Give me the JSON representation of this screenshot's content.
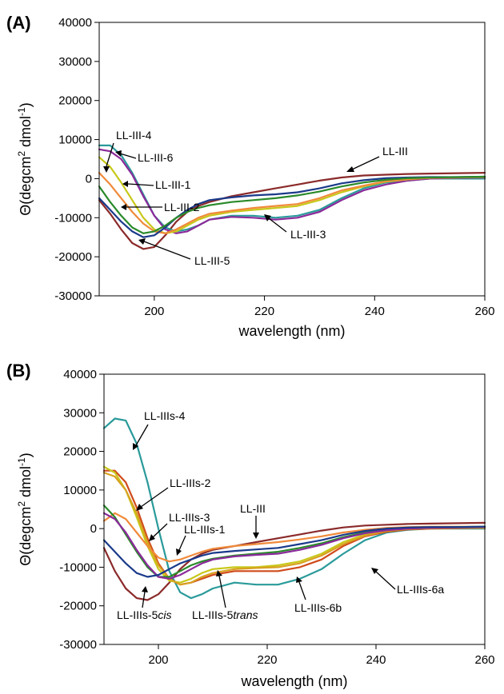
{
  "chart_data": [
    {
      "type": "line",
      "panel_label": "(A)",
      "xlabel": "wavelength (nm)",
      "ylabel_parts": [
        "Θ(degcm",
        "2",
        " dmol",
        "-1",
        ")"
      ],
      "xlim": [
        190,
        260
      ],
      "ylim": [
        -30000,
        40000
      ],
      "xticks": [
        200,
        220,
        240,
        260
      ],
      "yticks": [
        40000,
        30000,
        20000,
        10000,
        0,
        -10000,
        -20000,
        -30000
      ],
      "grid": false,
      "series": [
        {
          "name": "LL-III",
          "color": "#8b2a2a",
          "x": [
            190,
            192,
            194,
            196,
            198,
            200,
            202,
            204,
            206,
            208,
            210,
            214,
            218,
            222,
            226,
            230,
            234,
            238,
            242,
            246,
            250,
            255,
            260
          ],
          "y": [
            -5500,
            -9000,
            -13000,
            -16500,
            -18000,
            -17500,
            -14500,
            -11000,
            -8500,
            -7000,
            -6000,
            -4500,
            -3500,
            -2500,
            -1500,
            -500,
            300,
            800,
            1000,
            1200,
            1300,
            1400,
            1500
          ]
        },
        {
          "name": "LL-III-4",
          "color": "#2a9a9a",
          "x": [
            190,
            192,
            194,
            196,
            198,
            200,
            202,
            204,
            206,
            208,
            210,
            214,
            218,
            222,
            226,
            230,
            234,
            238,
            242,
            246,
            250,
            255,
            260
          ],
          "y": [
            8500,
            8500,
            6000,
            1500,
            -4000,
            -9500,
            -12500,
            -13500,
            -13000,
            -12000,
            -10500,
            -9500,
            -9500,
            -10000,
            -9500,
            -8000,
            -5000,
            -2500,
            -1000,
            -500,
            0,
            0,
            0
          ]
        },
        {
          "name": "LL-III-6",
          "color": "#8b2a9a",
          "x": [
            190,
            192,
            194,
            196,
            198,
            200,
            202,
            204,
            206,
            208,
            210,
            214,
            218,
            222,
            226,
            230,
            234,
            238,
            242,
            246,
            250,
            255,
            260
          ],
          "y": [
            7500,
            7000,
            5000,
            1000,
            -4500,
            -9500,
            -13000,
            -14000,
            -13500,
            -12000,
            -10500,
            -9800,
            -10000,
            -10500,
            -10000,
            -8500,
            -5500,
            -3000,
            -1500,
            -500,
            0,
            200,
            300
          ]
        },
        {
          "name": "LL-III-1",
          "color": "#c8c81a",
          "x": [
            190,
            192,
            194,
            196,
            198,
            200,
            202,
            204,
            206,
            208,
            210,
            214,
            218,
            222,
            226,
            230,
            234,
            238,
            242,
            246,
            250,
            255,
            260
          ],
          "y": [
            5500,
            3000,
            -1000,
            -5500,
            -10000,
            -13000,
            -14000,
            -13500,
            -12000,
            -10500,
            -9500,
            -8500,
            -8000,
            -7500,
            -7000,
            -5500,
            -3500,
            -2000,
            -800,
            -200,
            200,
            300,
            400
          ]
        },
        {
          "name": "LL-III-2",
          "color": "#f08a3a",
          "x": [
            190,
            192,
            194,
            196,
            198,
            200,
            202,
            204,
            206,
            208,
            210,
            214,
            218,
            222,
            226,
            230,
            234,
            238,
            242,
            246,
            250,
            255,
            260
          ],
          "y": [
            1500,
            -1500,
            -5000,
            -8500,
            -11500,
            -13500,
            -14000,
            -13000,
            -11500,
            -10000,
            -9000,
            -8200,
            -7500,
            -7000,
            -6500,
            -5000,
            -3000,
            -1800,
            -700,
            -100,
            200,
            300,
            400
          ]
        },
        {
          "name": "LL-III-5",
          "color": "#1a3a8a",
          "x": [
            190,
            192,
            194,
            196,
            198,
            200,
            202,
            204,
            206,
            208,
            210,
            214,
            218,
            222,
            226,
            230,
            234,
            238,
            242,
            246,
            250,
            255,
            260
          ],
          "y": [
            -5000,
            -8000,
            -11000,
            -13500,
            -15000,
            -14500,
            -12500,
            -10000,
            -8000,
            -6500,
            -5500,
            -4800,
            -4300,
            -4000,
            -3500,
            -2500,
            -1200,
            -400,
            100,
            300,
            400,
            400,
            500
          ]
        },
        {
          "name": "LL-III-3",
          "color": "#2a8a2a",
          "x": [
            190,
            192,
            194,
            196,
            198,
            200,
            202,
            204,
            206,
            208,
            210,
            214,
            218,
            222,
            226,
            230,
            234,
            238,
            242,
            246,
            250,
            255,
            260
          ],
          "y": [
            -2000,
            -6000,
            -9500,
            -12500,
            -14000,
            -13500,
            -12000,
            -10000,
            -8500,
            -7500,
            -6800,
            -6000,
            -5500,
            -5000,
            -4300,
            -3300,
            -2000,
            -1000,
            -300,
            100,
            300,
            400,
            500
          ]
        }
      ],
      "annotations": [
        "LL-III-4",
        "LL-III-6",
        "LL-III-1",
        "LL-III-2",
        "LL-III-5",
        "LL-III-3",
        "LL-III"
      ]
    },
    {
      "type": "line",
      "panel_label": "(B)",
      "xlabel": "wavelength (nm)",
      "ylabel_parts": [
        "Θ(degcm",
        "2",
        " dmol",
        "-1",
        ")"
      ],
      "xlim": [
        190,
        260
      ],
      "ylim": [
        -30000,
        40000
      ],
      "xticks": [
        200,
        220,
        240,
        260
      ],
      "yticks": [
        40000,
        30000,
        20000,
        10000,
        0,
        -10000,
        -20000,
        -30000
      ],
      "grid": false,
      "series": [
        {
          "name": "LL-III",
          "color": "#8b2a2a",
          "x": [
            190,
            192,
            194,
            196,
            198,
            200,
            202,
            204,
            206,
            208,
            210,
            214,
            218,
            222,
            226,
            230,
            234,
            238,
            242,
            246,
            250,
            255,
            260
          ],
          "y": [
            -5000,
            -11000,
            -15500,
            -18000,
            -18500,
            -17000,
            -14000,
            -10500,
            -8000,
            -6500,
            -5500,
            -4500,
            -3500,
            -2500,
            -1500,
            -500,
            300,
            800,
            1000,
            1200,
            1300,
            1400,
            1500
          ]
        },
        {
          "name": "LL-IIIs-4",
          "color": "#2a9a9a",
          "x": [
            190,
            192,
            194,
            196,
            198,
            200,
            202,
            204,
            206,
            208,
            210,
            214,
            218,
            222,
            226,
            230,
            234,
            238,
            242,
            246,
            250,
            255,
            260
          ],
          "y": [
            26000,
            28500,
            28000,
            22000,
            12000,
            0,
            -11000,
            -16500,
            -18000,
            -17000,
            -15500,
            -14000,
            -14500,
            -14500,
            -13000,
            -10500,
            -6500,
            -3000,
            -1000,
            -300,
            0,
            0,
            0
          ]
        },
        {
          "name": "LL-IIIs-2",
          "color": "#d04a1a",
          "x": [
            190,
            192,
            194,
            196,
            198,
            200,
            202,
            204,
            206,
            208,
            210,
            214,
            218,
            222,
            226,
            230,
            234,
            238,
            242,
            246,
            250,
            255,
            260
          ],
          "y": [
            15000,
            15000,
            12000,
            5500,
            -2500,
            -9000,
            -13000,
            -14500,
            -14000,
            -13000,
            -12000,
            -11000,
            -11000,
            -11000,
            -10000,
            -8000,
            -4500,
            -2000,
            -800,
            -200,
            0,
            100,
            200
          ]
        },
        {
          "name": "LL-IIIs-6a",
          "color": "#c8c81a",
          "x": [
            190,
            192,
            194,
            196,
            198,
            200,
            202,
            204,
            206,
            208,
            210,
            214,
            218,
            222,
            226,
            230,
            234,
            238,
            242,
            246,
            250,
            255,
            260
          ],
          "y": [
            16000,
            14500,
            10000,
            3000,
            -4500,
            -10500,
            -13500,
            -14000,
            -13000,
            -11500,
            -10500,
            -10000,
            -10000,
            -9500,
            -8500,
            -6500,
            -3500,
            -1500,
            -500,
            0,
            200,
            300,
            300
          ]
        },
        {
          "name": "LL-IIIs-6b",
          "color": "#d8a020",
          "x": [
            190,
            192,
            194,
            196,
            198,
            200,
            202,
            204,
            206,
            208,
            210,
            214,
            218,
            222,
            226,
            230,
            234,
            238,
            242,
            246,
            250,
            255,
            260
          ],
          "y": [
            14500,
            13500,
            10000,
            4000,
            -3500,
            -9500,
            -13000,
            -14500,
            -14000,
            -12500,
            -11500,
            -10500,
            -10200,
            -10000,
            -9000,
            -7000,
            -4000,
            -1800,
            -600,
            -100,
            100,
            200,
            200
          ]
        },
        {
          "name": "LL-IIIs-1",
          "color": "#f08a3a",
          "x": [
            190,
            192,
            194,
            196,
            198,
            200,
            202,
            204,
            206,
            208,
            210,
            214,
            218,
            222,
            226,
            230,
            234,
            238,
            242,
            246,
            250,
            255,
            260
          ],
          "y": [
            2000,
            4000,
            2500,
            -1000,
            -4500,
            -7500,
            -8500,
            -8000,
            -7000,
            -6000,
            -5200,
            -4500,
            -4000,
            -3500,
            -2800,
            -2000,
            -1000,
            -300,
            200,
            400,
            500,
            500,
            500
          ]
        },
        {
          "name": "LL-IIIs-3",
          "color": "#2a8a2a",
          "x": [
            190,
            192,
            194,
            196,
            198,
            200,
            202,
            204,
            206,
            208,
            210,
            214,
            218,
            222,
            226,
            230,
            234,
            238,
            242,
            246,
            250,
            255,
            260
          ],
          "y": [
            6000,
            3000,
            -1500,
            -6000,
            -10000,
            -12500,
            -12500,
            -11000,
            -9500,
            -8500,
            -7800,
            -7000,
            -6500,
            -6000,
            -5000,
            -3800,
            -2200,
            -1000,
            -300,
            100,
            300,
            400,
            500
          ]
        },
        {
          "name": "LL-IIIs-5trans",
          "color": "#8b2a9a",
          "x": [
            190,
            192,
            194,
            196,
            198,
            200,
            202,
            204,
            206,
            208,
            210,
            214,
            218,
            222,
            226,
            230,
            234,
            238,
            242,
            246,
            250,
            255,
            260
          ],
          "y": [
            4000,
            2500,
            -1000,
            -5500,
            -9500,
            -12500,
            -13000,
            -12000,
            -10500,
            -9000,
            -8000,
            -7200,
            -6800,
            -6500,
            -5500,
            -4200,
            -2500,
            -1200,
            -400,
            0,
            200,
            300,
            400
          ]
        },
        {
          "name": "LL-IIIs-5cis",
          "color": "#1a3a8a",
          "x": [
            190,
            192,
            194,
            196,
            198,
            200,
            202,
            204,
            206,
            208,
            210,
            214,
            218,
            222,
            226,
            230,
            234,
            238,
            242,
            246,
            250,
            255,
            260
          ],
          "y": [
            -3000,
            -6000,
            -9000,
            -11500,
            -12500,
            -12000,
            -10500,
            -9000,
            -8000,
            -7000,
            -6300,
            -5800,
            -5400,
            -5000,
            -4000,
            -3000,
            -1600,
            -600,
            0,
            300,
            400,
            400,
            500
          ]
        }
      ],
      "annotations": [
        "LL-IIIs-4",
        "LL-IIIs-2",
        "LL-IIIs-3",
        "LL-IIIs-1",
        "LL-III",
        "LL-IIIs-5",
        "cis",
        "LL-IIIs-5",
        "trans",
        "LL-IIIs-6b",
        "LL-IIIs-6a"
      ]
    }
  ]
}
